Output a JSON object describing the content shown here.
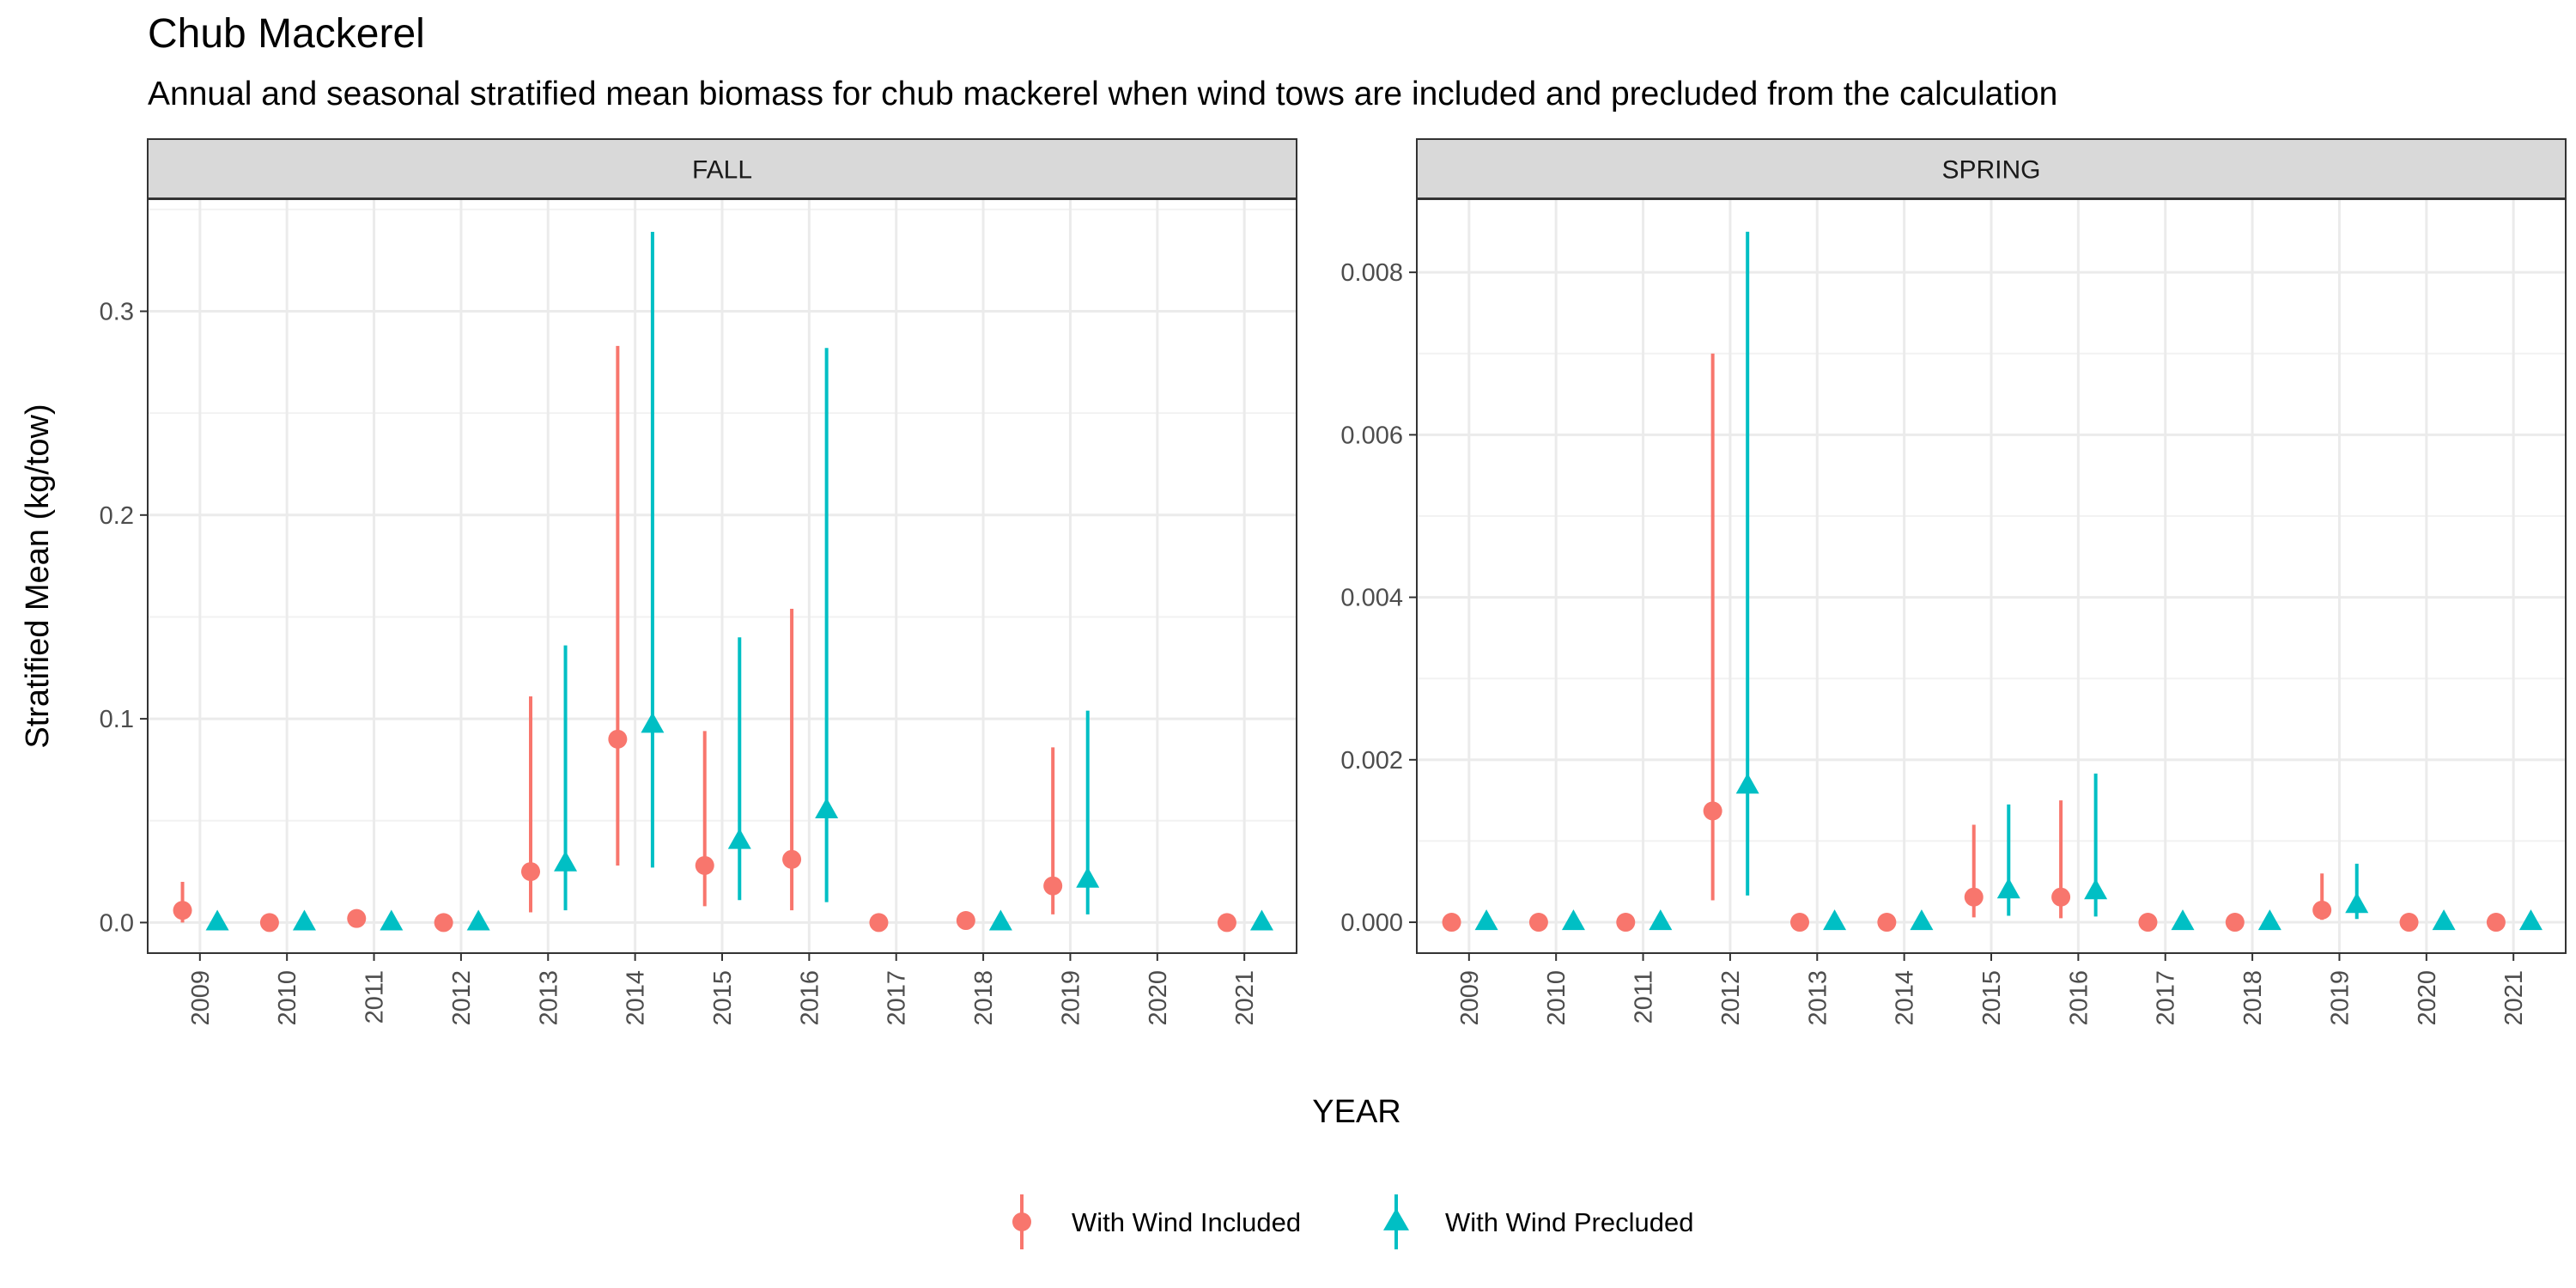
{
  "title": "Chub Mackerel",
  "subtitle": "Annual and seasonal stratified mean biomass for chub mackerel when wind tows are included and precluded from the calculation",
  "colors": {
    "included": "#F8766D",
    "precluded": "#00BFC4"
  },
  "chart_data": {
    "type": "scatter",
    "xlabel": "YEAR",
    "ylabel": "Stratified Mean (kg/tow)",
    "x": [
      2009,
      2010,
      2011,
      2012,
      2013,
      2014,
      2015,
      2016,
      2017,
      2018,
      2019,
      2020,
      2021
    ],
    "legend": {
      "placement": "bottom",
      "entries": [
        {
          "name": "With Wind Included",
          "color": "#F8766D",
          "shape": "circle"
        },
        {
          "name": "With Wind Precluded",
          "color": "#00BFC4",
          "shape": "triangle"
        }
      ]
    },
    "grid": true,
    "panels": [
      {
        "label": "FALL",
        "ylim": [
          -0.015,
          0.355
        ],
        "yticks": [
          0.0,
          0.1,
          0.2,
          0.3
        ],
        "ytick_labels": [
          "0.0",
          "0.1",
          "0.2",
          "0.3"
        ],
        "series": [
          {
            "name": "With Wind Included",
            "points": [
              {
                "x": 2009,
                "y": 0.006,
                "lo": 0.0,
                "hi": 0.02
              },
              {
                "x": 2010,
                "y": 0.0,
                "lo": 0.0,
                "hi": 0.0
              },
              {
                "x": 2011,
                "y": 0.002,
                "lo": 0.0,
                "hi": 0.004
              },
              {
                "x": 2012,
                "y": 0.0,
                "lo": 0.0,
                "hi": 0.0
              },
              {
                "x": 2013,
                "y": 0.025,
                "lo": 0.005,
                "hi": 0.111
              },
              {
                "x": 2014,
                "y": 0.09,
                "lo": 0.028,
                "hi": 0.283
              },
              {
                "x": 2015,
                "y": 0.028,
                "lo": 0.008,
                "hi": 0.094
              },
              {
                "x": 2016,
                "y": 0.031,
                "lo": 0.006,
                "hi": 0.154
              },
              {
                "x": 2017,
                "y": 0.0,
                "lo": 0.0,
                "hi": 0.0
              },
              {
                "x": 2018,
                "y": 0.001,
                "lo": 0.0,
                "hi": 0.002
              },
              {
                "x": 2019,
                "y": 0.018,
                "lo": 0.004,
                "hi": 0.086
              },
              {
                "x": 2021,
                "y": 0.0,
                "lo": 0.0,
                "hi": 0.0
              }
            ]
          },
          {
            "name": "With Wind Precluded",
            "points": [
              {
                "x": 2009,
                "y": 0.0,
                "lo": 0.0,
                "hi": 0.0
              },
              {
                "x": 2010,
                "y": 0.0,
                "lo": 0.0,
                "hi": 0.0
              },
              {
                "x": 2011,
                "y": 0.0,
                "lo": 0.0,
                "hi": 0.0
              },
              {
                "x": 2012,
                "y": 0.0,
                "lo": 0.0,
                "hi": 0.0
              },
              {
                "x": 2013,
                "y": 0.029,
                "lo": 0.006,
                "hi": 0.136
              },
              {
                "x": 2014,
                "y": 0.097,
                "lo": 0.027,
                "hi": 0.339
              },
              {
                "x": 2015,
                "y": 0.04,
                "lo": 0.011,
                "hi": 0.14
              },
              {
                "x": 2016,
                "y": 0.055,
                "lo": 0.01,
                "hi": 0.282
              },
              {
                "x": 2018,
                "y": 0.0,
                "lo": 0.0,
                "hi": 0.0
              },
              {
                "x": 2019,
                "y": 0.021,
                "lo": 0.004,
                "hi": 0.104
              },
              {
                "x": 2021,
                "y": 0.0,
                "lo": 0.0,
                "hi": 0.0
              }
            ]
          }
        ]
      },
      {
        "label": "SPRING",
        "ylim": [
          -0.00038,
          0.0089
        ],
        "yticks": [
          0.0,
          0.002,
          0.004,
          0.006,
          0.008
        ],
        "ytick_labels": [
          "0.000",
          "0.002",
          "0.004",
          "0.006",
          "0.008"
        ],
        "series": [
          {
            "name": "With Wind Included",
            "points": [
              {
                "x": 2009,
                "y": 0.0,
                "lo": 0.0,
                "hi": 0.0
              },
              {
                "x": 2010,
                "y": 0.0,
                "lo": 0.0,
                "hi": 0.0
              },
              {
                "x": 2011,
                "y": 0.0,
                "lo": 0.0,
                "hi": 0.0
              },
              {
                "x": 2012,
                "y": 0.00137,
                "lo": 0.00027,
                "hi": 0.007
              },
              {
                "x": 2013,
                "y": 0.0,
                "lo": 0.0,
                "hi": 0.0
              },
              {
                "x": 2014,
                "y": 0.0,
                "lo": 0.0,
                "hi": 0.0
              },
              {
                "x": 2015,
                "y": 0.00031,
                "lo": 6e-05,
                "hi": 0.0012
              },
              {
                "x": 2016,
                "y": 0.00031,
                "lo": 5e-05,
                "hi": 0.0015
              },
              {
                "x": 2017,
                "y": 0.0,
                "lo": 0.0,
                "hi": 0.0
              },
              {
                "x": 2018,
                "y": 0.0,
                "lo": 0.0,
                "hi": 0.0
              },
              {
                "x": 2019,
                "y": 0.00015,
                "lo": 3e-05,
                "hi": 0.0006
              },
              {
                "x": 2020,
                "y": 0.0,
                "lo": 0.0,
                "hi": 0.0
              },
              {
                "x": 2021,
                "y": 0.0,
                "lo": 0.0,
                "hi": 0.0
              }
            ]
          },
          {
            "name": "With Wind Precluded",
            "points": [
              {
                "x": 2009,
                "y": 0.0,
                "lo": 0.0,
                "hi": 0.0
              },
              {
                "x": 2010,
                "y": 0.0,
                "lo": 0.0,
                "hi": 0.0
              },
              {
                "x": 2011,
                "y": 0.0,
                "lo": 0.0,
                "hi": 0.0
              },
              {
                "x": 2012,
                "y": 0.00168,
                "lo": 0.00033,
                "hi": 0.0085
              },
              {
                "x": 2013,
                "y": 0.0,
                "lo": 0.0,
                "hi": 0.0
              },
              {
                "x": 2014,
                "y": 0.0,
                "lo": 0.0,
                "hi": 0.0
              },
              {
                "x": 2015,
                "y": 0.00039,
                "lo": 8e-05,
                "hi": 0.00145
              },
              {
                "x": 2016,
                "y": 0.00038,
                "lo": 7e-05,
                "hi": 0.00183
              },
              {
                "x": 2017,
                "y": 0.0,
                "lo": 0.0,
                "hi": 0.0
              },
              {
                "x": 2018,
                "y": 0.0,
                "lo": 0.0,
                "hi": 0.0
              },
              {
                "x": 2019,
                "y": 0.00021,
                "lo": 4e-05,
                "hi": 0.00072
              },
              {
                "x": 2020,
                "y": 0.0,
                "lo": 0.0,
                "hi": 0.0
              },
              {
                "x": 2021,
                "y": 0.0,
                "lo": 0.0,
                "hi": 0.0
              }
            ]
          }
        ]
      }
    ]
  }
}
